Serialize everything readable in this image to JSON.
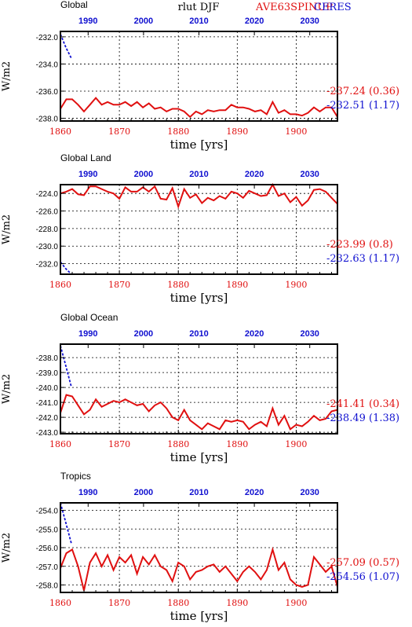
{
  "header": {
    "center_label": "rlut DJF",
    "series_labels": [
      {
        "text": "AVE63SPINUP",
        "color": "#e01010"
      },
      {
        "text": "CERES",
        "color": "#1010d0"
      }
    ]
  },
  "colors": {
    "red": "#e01010",
    "blue": "#1010d0",
    "axis": "#000000"
  },
  "chart_data": [
    {
      "type": "line",
      "title": "Global",
      "xlabel": "time [yrs]",
      "ylabel": "W/m2",
      "grid": true,
      "xlim_bottom": [
        1860,
        1907
      ],
      "xlim_top": [
        1985,
        2035
      ],
      "bottom_ticks": [
        "1860",
        "1870",
        "1880",
        "1890",
        "1900"
      ],
      "top_ticks": [
        "1990",
        "2000",
        "2010",
        "2020",
        "2030"
      ],
      "ylim": [
        -238.2,
        -231.6
      ],
      "y_ticks": [
        "-232.0",
        "-234.0",
        "-236.0",
        "-238.0"
      ],
      "y_tick_values": [
        -232,
        -234,
        -236,
        -238
      ],
      "right_labels": [
        {
          "text": "-237.24 (0.36)",
          "color": "#e01010"
        },
        {
          "text": "-232.51 (1.17)",
          "color": "#1010d0"
        }
      ],
      "series": [
        {
          "axis": "bottom",
          "color": "#e01010",
          "style": "solid",
          "x": [
            1860,
            1861,
            1862,
            1863,
            1864,
            1865,
            1866,
            1867,
            1868,
            1869,
            1870,
            1871,
            1872,
            1873,
            1874,
            1875,
            1876,
            1877,
            1878,
            1879,
            1880,
            1881,
            1882,
            1883,
            1884,
            1885,
            1886,
            1887,
            1888,
            1889,
            1890,
            1891,
            1892,
            1893,
            1894,
            1895,
            1896,
            1897,
            1898,
            1899,
            1900,
            1901,
            1902,
            1903,
            1904,
            1905,
            1906,
            1907
          ],
          "y": [
            -237.3,
            -236.6,
            -236.6,
            -237.0,
            -237.5,
            -237.0,
            -236.5,
            -237.0,
            -236.8,
            -237.0,
            -237.0,
            -236.8,
            -237.1,
            -236.8,
            -237.2,
            -236.9,
            -237.3,
            -237.2,
            -237.5,
            -237.3,
            -237.3,
            -237.5,
            -237.9,
            -237.5,
            -237.7,
            -237.4,
            -237.5,
            -237.4,
            -237.4,
            -237.0,
            -237.2,
            -237.2,
            -237.3,
            -237.5,
            -237.4,
            -237.7,
            -236.8,
            -237.6,
            -237.4,
            -237.7,
            -237.7,
            -237.8,
            -237.6,
            -237.2,
            -237.5,
            -237.2,
            -237.2,
            -237.9
          ]
        },
        {
          "axis": "top",
          "color": "#1010d0",
          "style": "dashed",
          "x": [
            1985,
            1986,
            1987
          ],
          "y": [
            -231.8,
            -232.8,
            -233.6
          ]
        }
      ]
    },
    {
      "type": "line",
      "title": "Global Land",
      "xlabel": "time [yrs]",
      "ylabel": "W/m2",
      "grid": true,
      "xlim_bottom": [
        1860,
        1907
      ],
      "xlim_top": [
        1985,
        2035
      ],
      "bottom_ticks": [
        "1860",
        "1870",
        "1880",
        "1890",
        "1900"
      ],
      "top_ticks": [
        "1990",
        "2000",
        "2010",
        "2020",
        "2030"
      ],
      "ylim": [
        -233.2,
        -223.0
      ],
      "y_ticks": [
        "-224.0",
        "-226.0",
        "-228.0",
        "-230.0",
        "-232.0"
      ],
      "y_tick_values": [
        -224,
        -226,
        -228,
        -230,
        -232
      ],
      "right_labels": [
        {
          "text": "-223.99 (0.8)",
          "color": "#e01010"
        },
        {
          "text": "-232.63 (1.17)",
          "color": "#1010d0"
        }
      ],
      "series": [
        {
          "axis": "bottom",
          "color": "#e01010",
          "style": "solid",
          "x": [
            1860,
            1861,
            1862,
            1863,
            1864,
            1865,
            1866,
            1867,
            1868,
            1869,
            1870,
            1871,
            1872,
            1873,
            1874,
            1875,
            1876,
            1877,
            1878,
            1879,
            1880,
            1881,
            1882,
            1883,
            1884,
            1885,
            1886,
            1887,
            1888,
            1889,
            1890,
            1891,
            1892,
            1893,
            1894,
            1895,
            1896,
            1897,
            1898,
            1899,
            1900,
            1901,
            1902,
            1903,
            1904,
            1905,
            1906,
            1907
          ],
          "y": [
            -224.0,
            -223.8,
            -223.5,
            -224.1,
            -224.2,
            -223.2,
            -223.2,
            -223.5,
            -223.8,
            -224.0,
            -224.6,
            -223.3,
            -223.8,
            -223.8,
            -223.3,
            -223.8,
            -223.2,
            -224.6,
            -224.7,
            -223.4,
            -225.5,
            -223.5,
            -224.5,
            -224.1,
            -225.1,
            -224.5,
            -224.8,
            -224.3,
            -224.6,
            -223.8,
            -224.0,
            -224.5,
            -223.7,
            -224.0,
            -224.3,
            -224.2,
            -223.0,
            -224.3,
            -224.0,
            -225.0,
            -224.4,
            -225.4,
            -224.8,
            -223.6,
            -223.5,
            -223.8,
            -224.5,
            -225.2
          ]
        },
        {
          "axis": "top",
          "color": "#1010d0",
          "style": "dashed",
          "x": [
            1985,
            1986,
            1987
          ],
          "y": [
            -231.8,
            -232.6,
            -233.2
          ]
        }
      ]
    },
    {
      "type": "line",
      "title": "Global Ocean",
      "xlabel": "time [yrs]",
      "ylabel": "W/m2",
      "grid": true,
      "xlim_bottom": [
        1860,
        1907
      ],
      "xlim_top": [
        1985,
        2035
      ],
      "bottom_ticks": [
        "1860",
        "1870",
        "1880",
        "1890",
        "1900"
      ],
      "top_ticks": [
        "1990",
        "2000",
        "2010",
        "2020",
        "2030"
      ],
      "ylim": [
        -243.1,
        -237.1
      ],
      "y_ticks": [
        "-238.0",
        "-239.0",
        "-240.0",
        "-241.0",
        "-242.0",
        "-243.0"
      ],
      "y_tick_values": [
        -238,
        -239,
        -240,
        -241,
        -242,
        -243
      ],
      "right_labels": [
        {
          "text": "-241.41 (0.34)",
          "color": "#e01010"
        },
        {
          "text": "-238.49 (1.38)",
          "color": "#1010d0"
        }
      ],
      "series": [
        {
          "axis": "bottom",
          "color": "#e01010",
          "style": "solid",
          "x": [
            1860,
            1861,
            1862,
            1863,
            1864,
            1865,
            1866,
            1867,
            1868,
            1869,
            1870,
            1871,
            1872,
            1873,
            1874,
            1875,
            1876,
            1877,
            1878,
            1879,
            1880,
            1881,
            1882,
            1883,
            1884,
            1885,
            1886,
            1887,
            1888,
            1889,
            1890,
            1891,
            1892,
            1893,
            1894,
            1895,
            1896,
            1897,
            1898,
            1899,
            1900,
            1901,
            1902,
            1903,
            1904,
            1905,
            1906,
            1907
          ],
          "y": [
            -241.7,
            -240.5,
            -240.6,
            -241.2,
            -241.8,
            -241.5,
            -240.8,
            -241.3,
            -241.1,
            -240.9,
            -241.0,
            -240.8,
            -241.0,
            -241.2,
            -241.1,
            -241.6,
            -241.2,
            -241.0,
            -241.4,
            -242.0,
            -242.2,
            -241.5,
            -242.2,
            -242.5,
            -242.8,
            -242.4,
            -242.6,
            -242.8,
            -242.2,
            -242.3,
            -242.2,
            -242.3,
            -242.8,
            -242.5,
            -242.3,
            -242.6,
            -241.4,
            -242.5,
            -241.9,
            -242.8,
            -242.5,
            -242.6,
            -242.3,
            -241.9,
            -242.2,
            -242.1,
            -241.6,
            -241.5
          ]
        },
        {
          "axis": "top",
          "color": "#1010d0",
          "style": "dashed",
          "x": [
            1985,
            1986,
            1987
          ],
          "y": [
            -237.2,
            -238.6,
            -240.0
          ]
        }
      ]
    },
    {
      "type": "line",
      "title": "Tropics",
      "xlabel": "time [yrs]",
      "ylabel": "W/m2",
      "grid": true,
      "xlim_bottom": [
        1860,
        1907
      ],
      "xlim_top": [
        1985,
        2035
      ],
      "bottom_ticks": [
        "1860",
        "1870",
        "1880",
        "1890",
        "1900"
      ],
      "top_ticks": [
        "1990",
        "2000",
        "2010",
        "2020",
        "2030"
      ],
      "ylim": [
        -258.4,
        -253.6
      ],
      "y_ticks": [
        "-254.0",
        "-255.0",
        "-256.0",
        "-257.0",
        "-258.0"
      ],
      "y_tick_values": [
        -254,
        -255,
        -256,
        -257,
        -258
      ],
      "right_labels": [
        {
          "text": "-257.09 (0.57)",
          "color": "#e01010"
        },
        {
          "text": "-254.56 (1.07)",
          "color": "#1010d0"
        }
      ],
      "series": [
        {
          "axis": "bottom",
          "color": "#e01010",
          "style": "solid",
          "x": [
            1860,
            1861,
            1862,
            1863,
            1864,
            1865,
            1866,
            1867,
            1868,
            1869,
            1870,
            1871,
            1872,
            1873,
            1874,
            1875,
            1876,
            1877,
            1878,
            1879,
            1880,
            1881,
            1882,
            1883,
            1884,
            1885,
            1886,
            1887,
            1888,
            1889,
            1890,
            1891,
            1892,
            1893,
            1894,
            1895,
            1896,
            1897,
            1898,
            1899,
            1900,
            1901,
            1902,
            1903,
            1904,
            1905,
            1906,
            1907
          ],
          "y": [
            -257.1,
            -256.3,
            -256.1,
            -257.0,
            -258.3,
            -256.8,
            -256.3,
            -257.0,
            -256.4,
            -257.2,
            -256.5,
            -256.8,
            -256.4,
            -257.4,
            -256.5,
            -256.9,
            -256.4,
            -257.0,
            -257.2,
            -257.8,
            -256.8,
            -257.0,
            -257.7,
            -257.3,
            -257.2,
            -257.0,
            -256.9,
            -257.3,
            -257.0,
            -257.4,
            -257.8,
            -257.3,
            -257.0,
            -257.3,
            -257.7,
            -257.2,
            -256.1,
            -257.2,
            -256.8,
            -257.7,
            -258.0,
            -258.1,
            -258.0,
            -256.5,
            -256.9,
            -257.3,
            -257.0,
            -258.1
          ]
        },
        {
          "axis": "top",
          "color": "#1010d0",
          "style": "dashed",
          "x": [
            1985,
            1986,
            1987
          ],
          "y": [
            -253.6,
            -254.7,
            -255.8
          ]
        }
      ]
    }
  ]
}
